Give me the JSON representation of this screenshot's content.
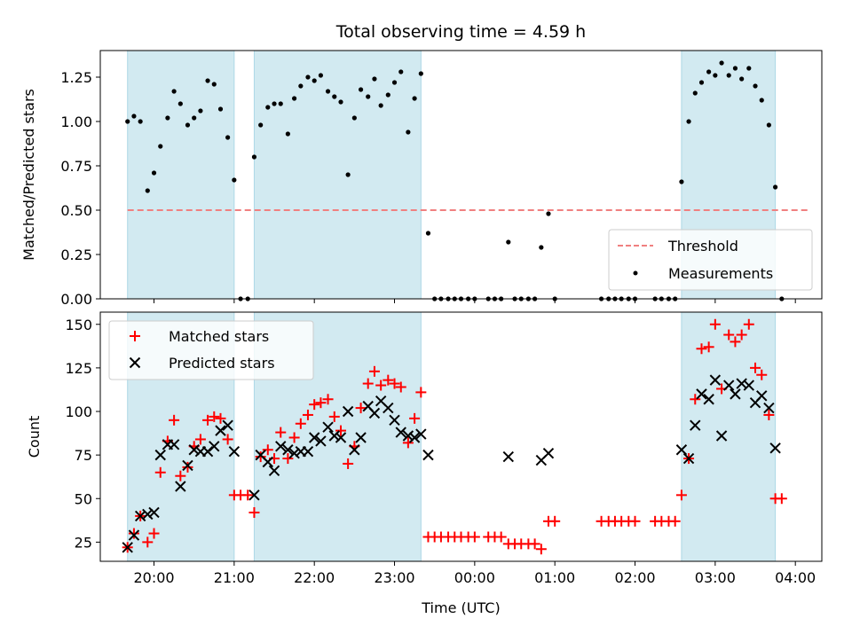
{
  "chart_data": [
    {
      "type": "scatter",
      "title": "Total observing time = 4.59 h",
      "xlabel": "",
      "ylabel": "Matched/Predicted stars",
      "xlim": [
        19.33,
        28.33
      ],
      "ylim": [
        0,
        1.4
      ],
      "yticks": [
        0,
        0.25,
        0.5,
        0.75,
        1.0,
        1.25
      ],
      "ytick_labels": [
        "0.00",
        "0.25",
        "0.50",
        "0.75",
        "1.00",
        "1.25"
      ],
      "xticks": [
        20,
        21,
        22,
        23,
        24,
        25,
        26,
        27,
        28
      ],
      "xtick_labels": [],
      "shaded_spans": [
        [
          19.67,
          21.0
        ],
        [
          21.25,
          23.33
        ],
        [
          26.58,
          27.75
        ]
      ],
      "shade_color": "#add8e6",
      "threshold": {
        "value": 0.5,
        "x_range": [
          19.67,
          28.17
        ],
        "color": "#f08080",
        "style": "dashed"
      },
      "legend": {
        "position": "lower-right",
        "entries": [
          {
            "label": "Threshold",
            "marker": "dashed-line",
            "color": "#f08080"
          },
          {
            "label": "Measurements",
            "marker": "dot",
            "color": "#000000"
          }
        ]
      },
      "points": [
        [
          19.67,
          1.0
        ],
        [
          19.75,
          1.03
        ],
        [
          19.83,
          1.0
        ],
        [
          19.92,
          0.61
        ],
        [
          20.0,
          0.71
        ],
        [
          20.08,
          0.86
        ],
        [
          20.17,
          1.02
        ],
        [
          20.25,
          1.17
        ],
        [
          20.33,
          1.1
        ],
        [
          20.42,
          0.98
        ],
        [
          20.5,
          1.02
        ],
        [
          20.58,
          1.06
        ],
        [
          20.67,
          1.23
        ],
        [
          20.75,
          1.21
        ],
        [
          20.83,
          1.07
        ],
        [
          20.92,
          0.91
        ],
        [
          21.0,
          0.67
        ],
        [
          21.08,
          0.0
        ],
        [
          21.17,
          0.0
        ],
        [
          21.25,
          0.8
        ],
        [
          21.33,
          0.98
        ],
        [
          21.42,
          1.08
        ],
        [
          21.5,
          1.1
        ],
        [
          21.58,
          1.1
        ],
        [
          21.67,
          0.93
        ],
        [
          21.75,
          1.13
        ],
        [
          21.83,
          1.2
        ],
        [
          21.92,
          1.25
        ],
        [
          22.0,
          1.23
        ],
        [
          22.08,
          1.26
        ],
        [
          22.17,
          1.17
        ],
        [
          22.25,
          1.14
        ],
        [
          22.33,
          1.11
        ],
        [
          22.42,
          0.7
        ],
        [
          22.5,
          1.02
        ],
        [
          22.58,
          1.18
        ],
        [
          22.67,
          1.14
        ],
        [
          22.75,
          1.24
        ],
        [
          22.83,
          1.09
        ],
        [
          22.92,
          1.15
        ],
        [
          23.0,
          1.22
        ],
        [
          23.08,
          1.28
        ],
        [
          23.17,
          0.94
        ],
        [
          23.25,
          1.13
        ],
        [
          23.33,
          1.27
        ],
        [
          23.42,
          0.37
        ],
        [
          23.5,
          0.0
        ],
        [
          23.58,
          0.0
        ],
        [
          23.67,
          0.0
        ],
        [
          23.75,
          0.0
        ],
        [
          23.83,
          0.0
        ],
        [
          23.92,
          0.0
        ],
        [
          24.0,
          0.0
        ],
        [
          24.17,
          0.0
        ],
        [
          24.25,
          0.0
        ],
        [
          24.33,
          0.0
        ],
        [
          24.42,
          0.32
        ],
        [
          24.5,
          0.0
        ],
        [
          24.58,
          0.0
        ],
        [
          24.67,
          0.0
        ],
        [
          24.75,
          0.0
        ],
        [
          24.83,
          0.29
        ],
        [
          24.92,
          0.48
        ],
        [
          25.0,
          0.0
        ],
        [
          25.58,
          0.0
        ],
        [
          25.67,
          0.0
        ],
        [
          25.75,
          0.0
        ],
        [
          25.83,
          0.0
        ],
        [
          25.92,
          0.0
        ],
        [
          26.0,
          0.0
        ],
        [
          26.25,
          0.0
        ],
        [
          26.33,
          0.0
        ],
        [
          26.42,
          0.0
        ],
        [
          26.5,
          0.0
        ],
        [
          26.58,
          0.66
        ],
        [
          26.67,
          1.0
        ],
        [
          26.75,
          1.16
        ],
        [
          26.83,
          1.22
        ],
        [
          26.92,
          1.28
        ],
        [
          27.0,
          1.26
        ],
        [
          27.08,
          1.33
        ],
        [
          27.17,
          1.26
        ],
        [
          27.25,
          1.3
        ],
        [
          27.33,
          1.24
        ],
        [
          27.42,
          1.3
        ],
        [
          27.5,
          1.2
        ],
        [
          27.58,
          1.12
        ],
        [
          27.67,
          0.98
        ],
        [
          27.75,
          0.63
        ],
        [
          27.83,
          0.0
        ]
      ]
    },
    {
      "type": "scatter",
      "title": "",
      "xlabel": "Time (UTC)",
      "ylabel": "Count",
      "xlim": [
        19.33,
        28.33
      ],
      "ylim": [
        14,
        157
      ],
      "yticks": [
        25,
        50,
        75,
        100,
        125,
        150
      ],
      "ytick_labels": [
        "25",
        "50",
        "75",
        "100",
        "125",
        "150"
      ],
      "xticks": [
        20,
        21,
        22,
        23,
        24,
        25,
        26,
        27,
        28
      ],
      "xtick_labels": [
        "20:00",
        "21:00",
        "22:00",
        "23:00",
        "00:00",
        "01:00",
        "02:00",
        "03:00",
        "04:00"
      ],
      "shaded_spans": [
        [
          19.67,
          21.0
        ],
        [
          21.25,
          23.33
        ],
        [
          26.58,
          27.75
        ]
      ],
      "shade_color": "#add8e6",
      "legend": {
        "position": "upper-left",
        "entries": [
          {
            "label": "Matched stars",
            "marker": "plus",
            "color": "#ff0000"
          },
          {
            "label": "Predicted stars",
            "marker": "x",
            "color": "#000000"
          }
        ]
      },
      "series": [
        {
          "name": "Matched stars",
          "marker": "plus",
          "color": "#ff0000",
          "points": [
            [
              19.67,
              22
            ],
            [
              19.75,
              30
            ],
            [
              19.83,
              40
            ],
            [
              19.92,
              25
            ],
            [
              20.0,
              30
            ],
            [
              20.08,
              65
            ],
            [
              20.17,
              83
            ],
            [
              20.25,
              95
            ],
            [
              20.33,
              63
            ],
            [
              20.42,
              68
            ],
            [
              20.5,
              80
            ],
            [
              20.58,
              84
            ],
            [
              20.67,
              95
            ],
            [
              20.75,
              97
            ],
            [
              20.83,
              96
            ],
            [
              20.92,
              84
            ],
            [
              21.0,
              52
            ],
            [
              21.08,
              52
            ],
            [
              21.17,
              52
            ],
            [
              21.25,
              42
            ],
            [
              21.33,
              74
            ],
            [
              21.42,
              78
            ],
            [
              21.5,
              73
            ],
            [
              21.58,
              88
            ],
            [
              21.67,
              73
            ],
            [
              21.75,
              85
            ],
            [
              21.83,
              93
            ],
            [
              21.92,
              98
            ],
            [
              22.0,
              104
            ],
            [
              22.08,
              105
            ],
            [
              22.17,
              107
            ],
            [
              22.25,
              97
            ],
            [
              22.33,
              89
            ],
            [
              22.42,
              70
            ],
            [
              22.5,
              80
            ],
            [
              22.58,
              102
            ],
            [
              22.67,
              116
            ],
            [
              22.75,
              123
            ],
            [
              22.83,
              115
            ],
            [
              22.92,
              118
            ],
            [
              23.0,
              116
            ],
            [
              23.08,
              114
            ],
            [
              23.17,
              82
            ],
            [
              23.25,
              96
            ],
            [
              23.33,
              111
            ],
            [
              23.42,
              28
            ],
            [
              23.5,
              28
            ],
            [
              23.58,
              28
            ],
            [
              23.67,
              28
            ],
            [
              23.75,
              28
            ],
            [
              23.83,
              28
            ],
            [
              23.92,
              28
            ],
            [
              24.0,
              28
            ],
            [
              24.17,
              28
            ],
            [
              24.25,
              28
            ],
            [
              24.33,
              28
            ],
            [
              24.42,
              24
            ],
            [
              24.5,
              24
            ],
            [
              24.58,
              24
            ],
            [
              24.67,
              24
            ],
            [
              24.75,
              24
            ],
            [
              24.83,
              21
            ],
            [
              24.92,
              37
            ],
            [
              25.0,
              37
            ],
            [
              25.58,
              37
            ],
            [
              25.67,
              37
            ],
            [
              25.75,
              37
            ],
            [
              25.83,
              37
            ],
            [
              25.92,
              37
            ],
            [
              26.0,
              37
            ],
            [
              26.25,
              37
            ],
            [
              26.33,
              37
            ],
            [
              26.42,
              37
            ],
            [
              26.5,
              37
            ],
            [
              26.58,
              52
            ],
            [
              26.67,
              73
            ],
            [
              26.75,
              107
            ],
            [
              26.83,
              136
            ],
            [
              26.92,
              137
            ],
            [
              27.0,
              150
            ],
            [
              27.08,
              113
            ],
            [
              27.17,
              144
            ],
            [
              27.25,
              140
            ],
            [
              27.33,
              144
            ],
            [
              27.42,
              150
            ],
            [
              27.5,
              125
            ],
            [
              27.58,
              121
            ],
            [
              27.67,
              98
            ],
            [
              27.75,
              50
            ],
            [
              27.83,
              50
            ]
          ]
        },
        {
          "name": "Predicted stars",
          "marker": "x",
          "color": "#000000",
          "points": [
            [
              19.67,
              22
            ],
            [
              19.75,
              29
            ],
            [
              19.83,
              40
            ],
            [
              19.92,
              41
            ],
            [
              20.0,
              42
            ],
            [
              20.08,
              75
            ],
            [
              20.17,
              81
            ],
            [
              20.25,
              81
            ],
            [
              20.33,
              57
            ],
            [
              20.42,
              69
            ],
            [
              20.5,
              78
            ],
            [
              20.58,
              77
            ],
            [
              20.67,
              77
            ],
            [
              20.75,
              80
            ],
            [
              20.83,
              89
            ],
            [
              20.92,
              92
            ],
            [
              21.0,
              77
            ],
            [
              21.25,
              52
            ],
            [
              21.33,
              75
            ],
            [
              21.42,
              71
            ],
            [
              21.5,
              66
            ],
            [
              21.58,
              80
            ],
            [
              21.67,
              78
            ],
            [
              21.75,
              76
            ],
            [
              21.83,
              77
            ],
            [
              21.92,
              77
            ],
            [
              22.0,
              85
            ],
            [
              22.08,
              83
            ],
            [
              22.17,
              91
            ],
            [
              22.25,
              86
            ],
            [
              22.33,
              85
            ],
            [
              22.42,
              100
            ],
            [
              22.5,
              78
            ],
            [
              22.58,
              85
            ],
            [
              22.67,
              103
            ],
            [
              22.75,
              99
            ],
            [
              22.83,
              106
            ],
            [
              22.92,
              102
            ],
            [
              23.0,
              95
            ],
            [
              23.08,
              88
            ],
            [
              23.17,
              86
            ],
            [
              23.25,
              85
            ],
            [
              23.33,
              87
            ],
            [
              23.42,
              75
            ],
            [
              24.42,
              74
            ],
            [
              24.83,
              72
            ],
            [
              24.92,
              76
            ],
            [
              26.58,
              78
            ],
            [
              26.67,
              73
            ],
            [
              26.75,
              92
            ],
            [
              26.83,
              110
            ],
            [
              26.92,
              107
            ],
            [
              27.0,
              118
            ],
            [
              27.08,
              86
            ],
            [
              27.17,
              115
            ],
            [
              27.25,
              110
            ],
            [
              27.33,
              116
            ],
            [
              27.42,
              115
            ],
            [
              27.5,
              105
            ],
            [
              27.58,
              109
            ],
            [
              27.67,
              102
            ],
            [
              27.75,
              79
            ]
          ]
        }
      ]
    }
  ]
}
